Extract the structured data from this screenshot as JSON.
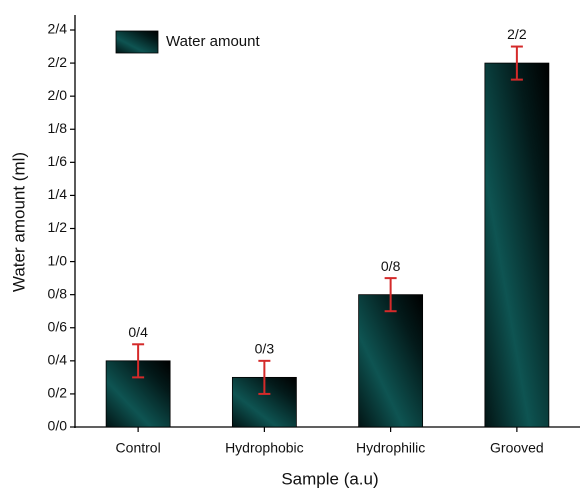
{
  "chart_data": {
    "type": "bar",
    "xlabel": "Sample (a.u)",
    "ylabel": "Water amount (ml)",
    "categories": [
      "Control",
      "Hydrophobic",
      "Hydrophilic",
      "Grooved"
    ],
    "series": [
      {
        "name": "Water amount",
        "color": "#0e5452",
        "values": [
          0.4,
          0.3,
          0.8,
          2.2
        ],
        "value_labels": [
          "0/4",
          "0/3",
          "0/8",
          "2/2"
        ],
        "errors": [
          0.1,
          0.1,
          0.1,
          0.1
        ],
        "error_color": "#d42a2a"
      }
    ],
    "ylim": [
      0,
      2.4
    ],
    "yticks": [
      {
        "value": 0,
        "label": "0/0"
      },
      {
        "value": 0.2,
        "label": "0/2"
      },
      {
        "value": 0.4,
        "label": "0/4"
      },
      {
        "value": 0.6,
        "label": "0/6"
      },
      {
        "value": 0.8,
        "label": "0/8"
      },
      {
        "value": 1.0,
        "label": "1/0"
      },
      {
        "value": 1.2,
        "label": "1/2"
      },
      {
        "value": 1.4,
        "label": "1/4"
      },
      {
        "value": 1.6,
        "label": "1/6"
      },
      {
        "value": 1.8,
        "label": "1/8"
      },
      {
        "value": 2.0,
        "label": "2/0"
      },
      {
        "value": 2.2,
        "label": "2/2"
      },
      {
        "value": 2.4,
        "label": "2/4"
      }
    ],
    "grid": false,
    "legend": "upper left"
  }
}
